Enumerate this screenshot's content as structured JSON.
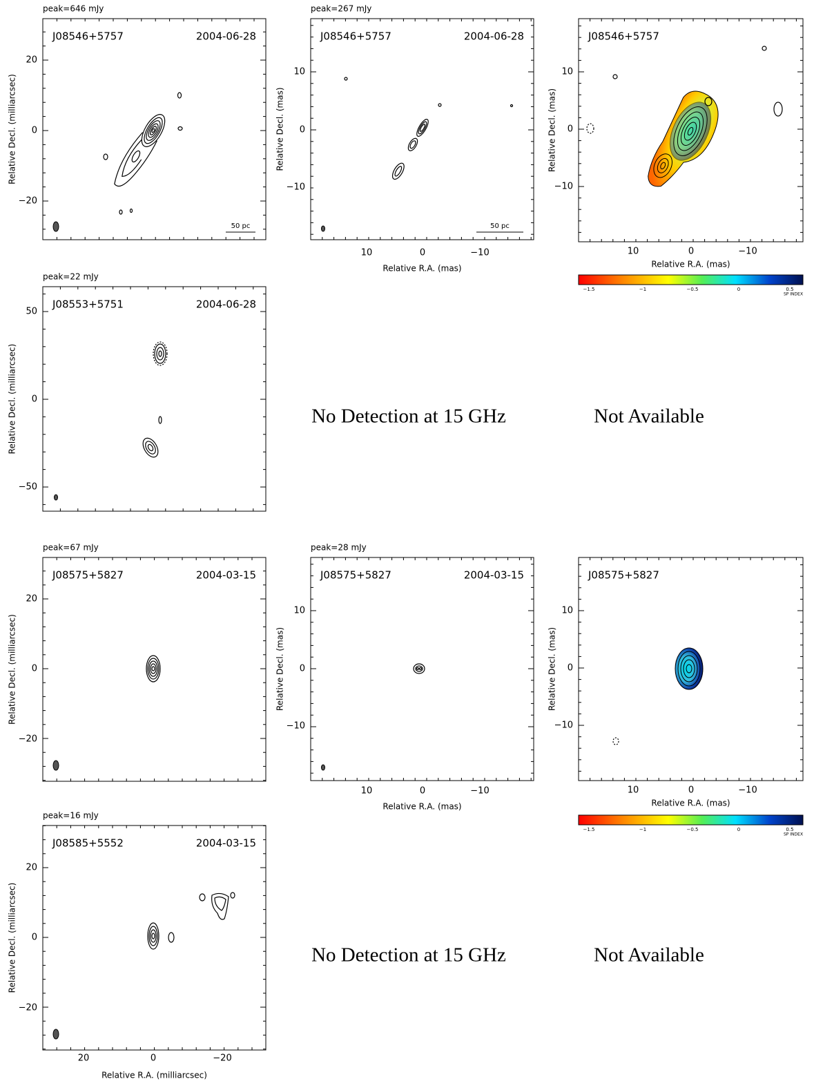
{
  "panels": [
    {
      "peak": "peak=646 mJy",
      "source": "J08546+5757",
      "date": "2004-06-28",
      "ylabel": "Relative Decl. (milliarcsec)",
      "yticks": [
        "20",
        "0",
        "−20"
      ],
      "scalebar": "50 pc"
    },
    {
      "peak": "peak=267 mJy",
      "source": "J08546+5757",
      "date": "2004-06-28",
      "ylabel": "Relative Decl. (mas)",
      "yticks": [
        "10",
        "0",
        "−10"
      ],
      "xticks": [
        "10",
        "0",
        "−10"
      ],
      "xlabel": "Relative R.A. (mas)",
      "scalebar": "50 pc"
    },
    {
      "source": "J08546+5757",
      "ylabel": "Relative Decl. (mas)",
      "yticks": [
        "10",
        "0",
        "−10"
      ],
      "xticks": [
        "10",
        "0",
        "−10"
      ],
      "xlabel": "Relative R.A. (mas)",
      "colorbar": {
        "ticks": [
          "−1.5",
          "−1",
          "−0.5",
          "0",
          "0.5"
        ],
        "title": "SP INDEX"
      }
    },
    {
      "peak": "peak=22 mJy",
      "source": "J08553+5751",
      "date": "2004-06-28",
      "ylabel": "Relative Decl. (milliarcsec)",
      "yticks": [
        "50",
        "0",
        "−50"
      ]
    },
    {
      "peak": "peak=67 mJy",
      "source": "J08575+5827",
      "date": "2004-03-15",
      "ylabel": "Relative Decl. (milliarcsec)",
      "yticks": [
        "20",
        "0",
        "−20"
      ]
    },
    {
      "peak": "peak=28 mJy",
      "source": "J08575+5827",
      "date": "2004-03-15",
      "ylabel": "Relative Decl. (mas)",
      "yticks": [
        "10",
        "0",
        "−10"
      ],
      "xticks": [
        "10",
        "0",
        "−10"
      ],
      "xlabel": "Relative R.A. (mas)"
    },
    {
      "source": "J08575+5827",
      "ylabel": "Relative Decl. (mas)",
      "yticks": [
        "10",
        "0",
        "−10"
      ],
      "xticks": [
        "10",
        "0",
        "−10"
      ],
      "xlabel": "Relative R.A. (mas)",
      "colorbar": {
        "ticks": [
          "−1.5",
          "−1",
          "−0.5",
          "0",
          "0.5"
        ],
        "title": "SP INDEX"
      }
    },
    {
      "peak": "peak=16 mJy",
      "source": "J08585+5552",
      "date": "2004-03-15",
      "ylabel": "Relative Decl. (milliarcsec)",
      "yticks": [
        "20",
        "0",
        "−20"
      ],
      "xticks": [
        "20",
        "0",
        "−20"
      ],
      "xlabel": "Relative R.A. (milliarcsec)"
    }
  ],
  "notes": [
    "No Detection at 15 GHz",
    "Not Available",
    "No Detection at 15 GHz",
    "Not Available"
  ]
}
